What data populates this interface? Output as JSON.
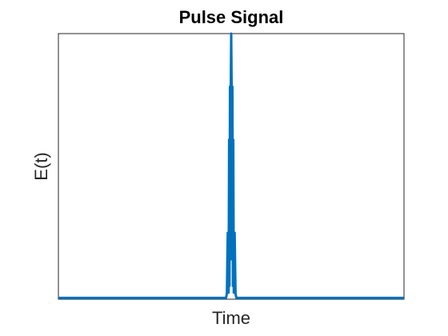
{
  "chart_data": {
    "type": "line",
    "title": "Pulse Signal",
    "xlabel": "Time",
    "ylabel": "E(t)",
    "xlim": [
      -1,
      1
    ],
    "ylim": [
      -1,
      1
    ],
    "xticks": [],
    "yticks": [],
    "grid": false,
    "series": [
      {
        "color": "#0072BD",
        "x": [
          -1.0,
          -0.03,
          -0.025,
          -0.02,
          -0.015,
          -0.012,
          -0.01,
          -0.007,
          -0.005,
          -0.003,
          0.0,
          0.003,
          0.005,
          0.007,
          0.01,
          0.012,
          0.015,
          0.02,
          0.025,
          0.03,
          1.0
        ],
        "y": [
          -0.99,
          -0.99,
          -0.96,
          -0.5,
          -0.95,
          0.2,
          -0.9,
          0.6,
          -0.7,
          0.5,
          1.0,
          0.5,
          -0.7,
          0.6,
          -0.9,
          0.2,
          -0.95,
          -0.5,
          -0.96,
          -0.99,
          -0.99
        ]
      }
    ]
  }
}
